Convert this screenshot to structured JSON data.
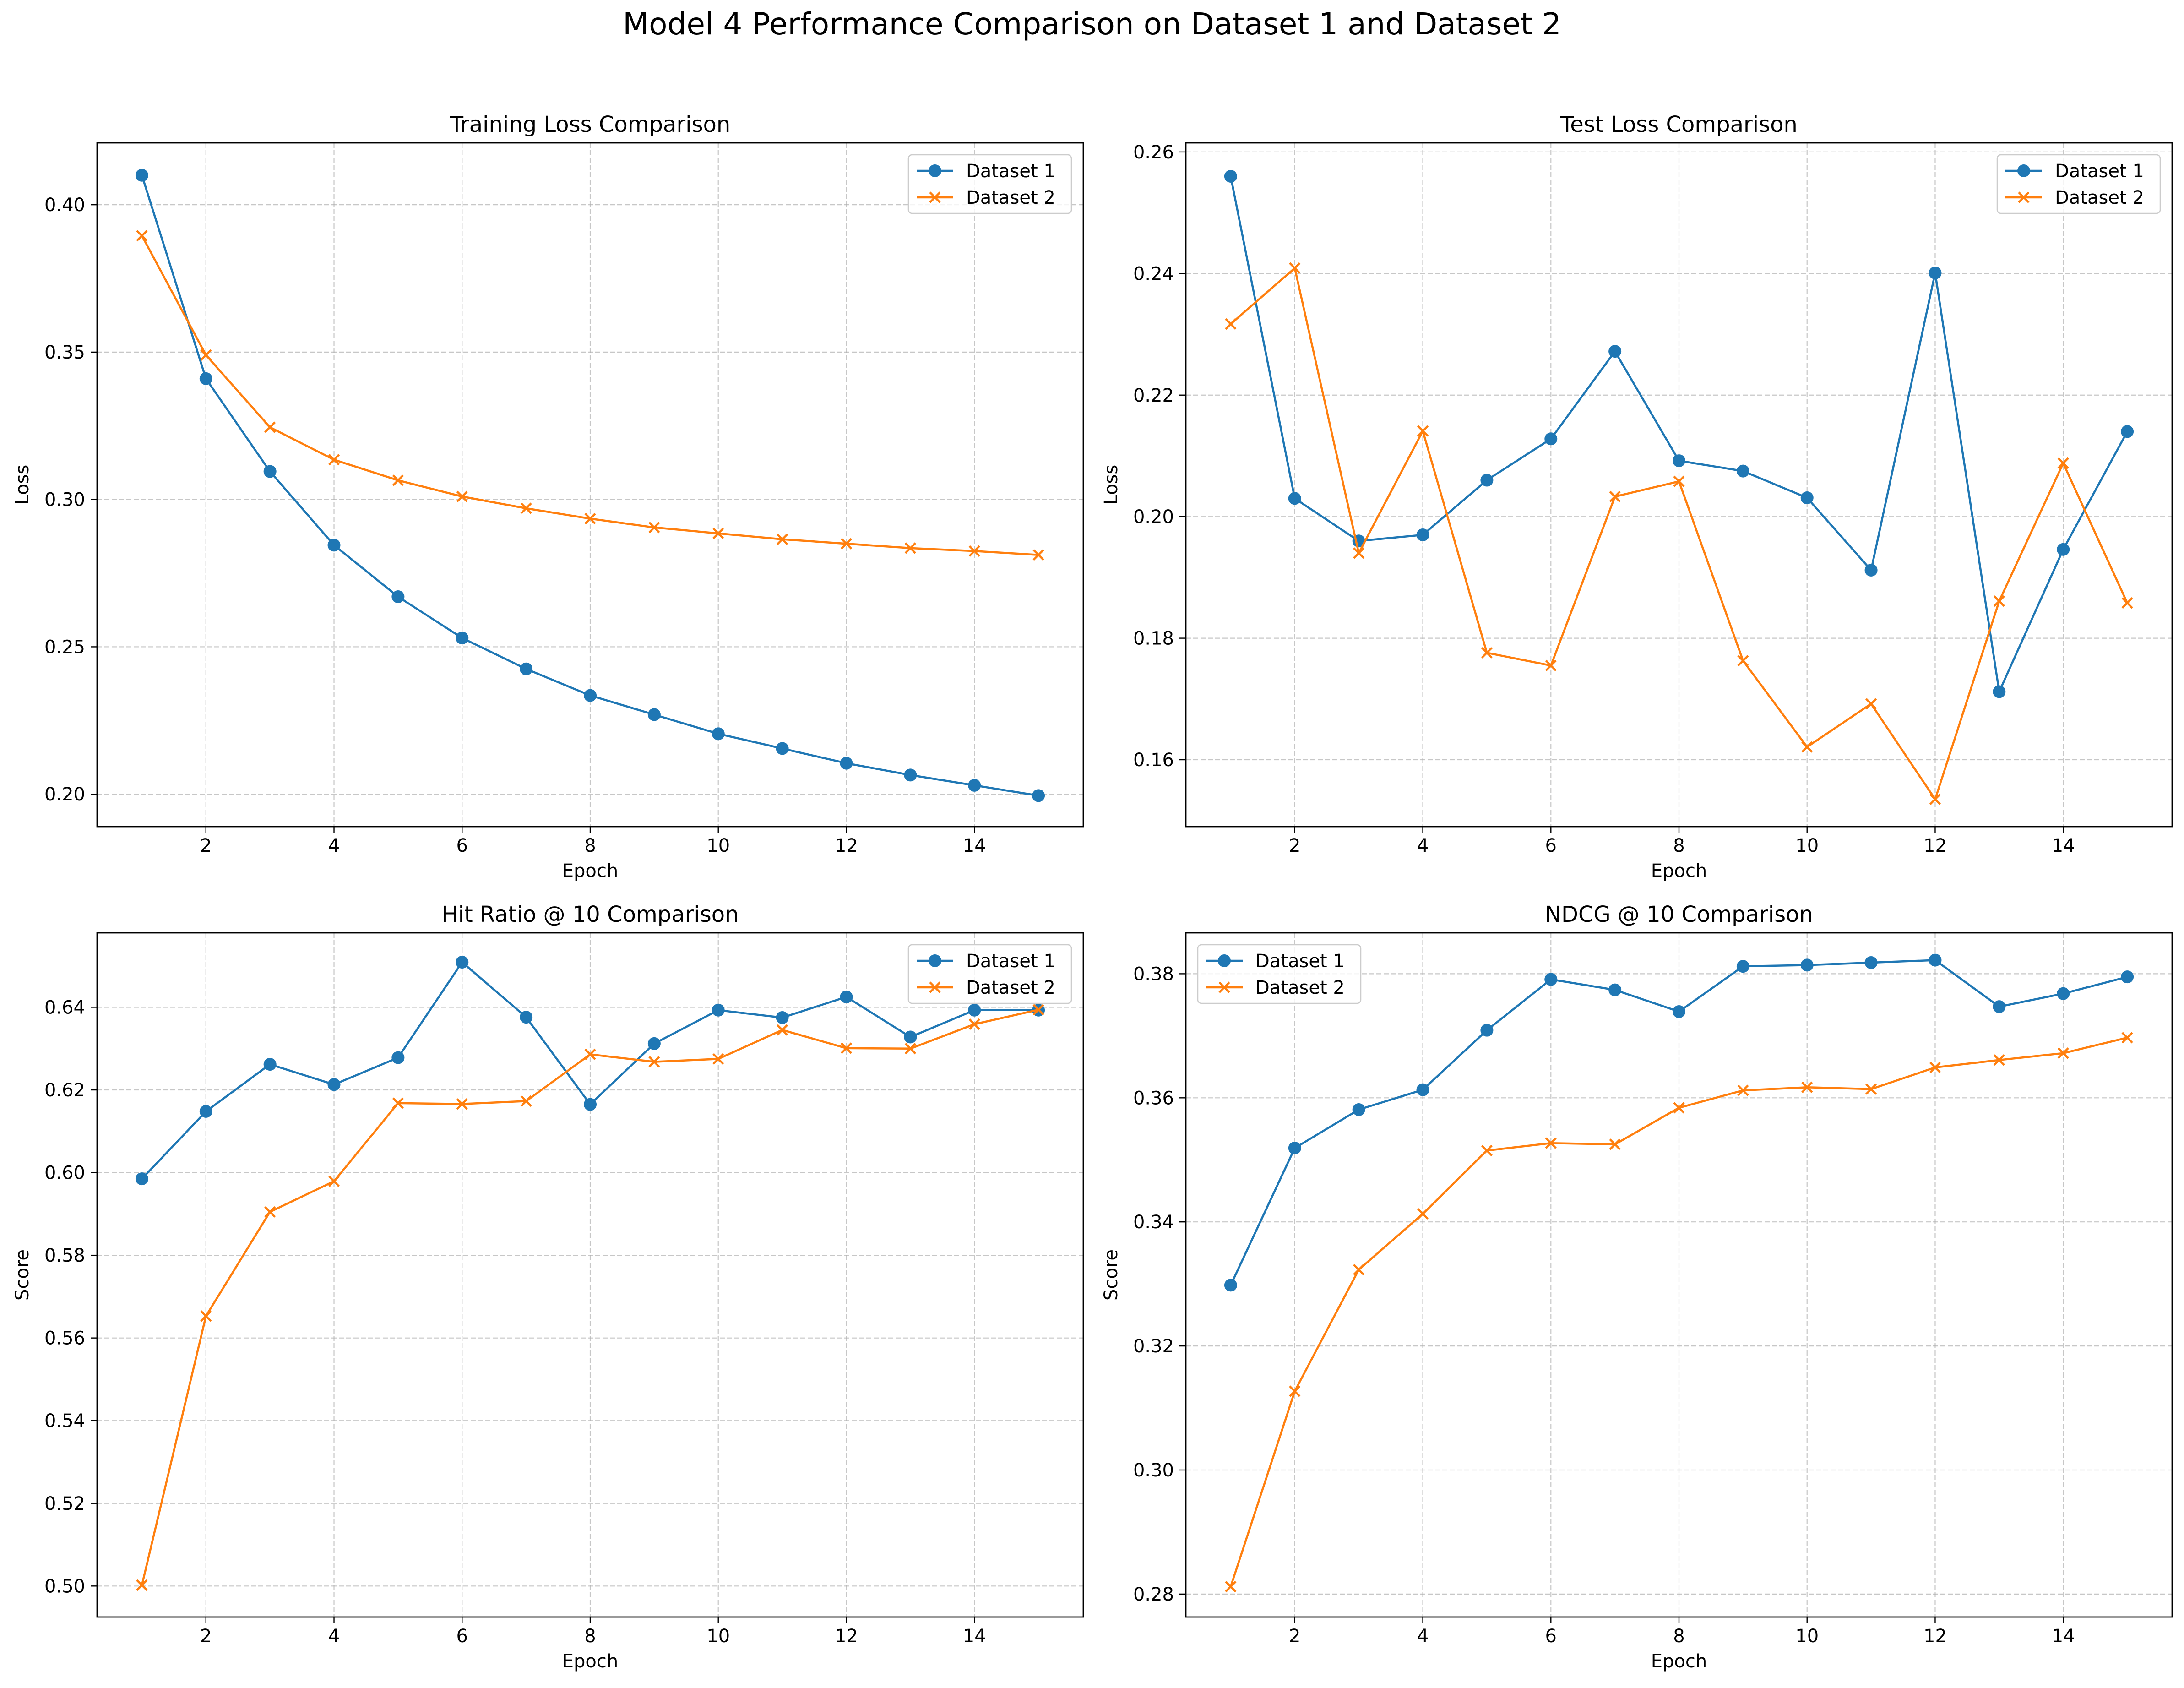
{
  "figure_title": "Model 4 Performance Comparison on Dataset 1 and Dataset 2",
  "colors": {
    "dataset1": "#1f77b4",
    "dataset2": "#ff7f0e",
    "grid": "#b0b0b0"
  },
  "chart_data": [
    {
      "type": "line",
      "title": "Training Loss Comparison",
      "xlabel": "Epoch",
      "ylabel": "Loss",
      "x": [
        1,
        2,
        3,
        4,
        5,
        6,
        7,
        8,
        9,
        10,
        11,
        12,
        13,
        14,
        15
      ],
      "xlim": [
        0.3,
        15.7
      ],
      "ylim": [
        0.189,
        0.421
      ],
      "xticks": [
        2,
        4,
        6,
        8,
        10,
        12,
        14
      ],
      "yticks": [
        0.2,
        0.25,
        0.3,
        0.35,
        0.4
      ],
      "ytick_labels": [
        "0.20",
        "0.25",
        "0.30",
        "0.35",
        "0.40"
      ],
      "grid": true,
      "legend": "top-right",
      "series": [
        {
          "name": "Dataset 1",
          "marker": "circle",
          "values": [
            0.41,
            0.341,
            0.3095,
            0.2845,
            0.267,
            0.253,
            0.2425,
            0.2335,
            0.227,
            0.2205,
            0.2155,
            0.2105,
            0.2065,
            0.203,
            0.1995
          ]
        },
        {
          "name": "Dataset 2",
          "marker": "x",
          "values": [
            0.3895,
            0.349,
            0.3245,
            0.3135,
            0.3065,
            0.301,
            0.297,
            0.2935,
            0.2905,
            0.2885,
            0.2865,
            0.285,
            0.2835,
            0.2825,
            0.2812
          ]
        }
      ]
    },
    {
      "type": "line",
      "title": "Test Loss Comparison",
      "xlabel": "Epoch",
      "ylabel": "Loss",
      "x": [
        1,
        2,
        3,
        4,
        5,
        6,
        7,
        8,
        9,
        10,
        11,
        12,
        13,
        14,
        15
      ],
      "xlim": [
        0.3,
        15.7
      ],
      "ylim": [
        0.149,
        0.2615
      ],
      "xticks": [
        2,
        4,
        6,
        8,
        10,
        12,
        14
      ],
      "yticks": [
        0.16,
        0.18,
        0.2,
        0.22,
        0.24,
        0.26
      ],
      "ytick_labels": [
        "0.16",
        "0.18",
        "0.20",
        "0.22",
        "0.24",
        "0.26"
      ],
      "grid": true,
      "legend": "top-right",
      "series": [
        {
          "name": "Dataset 1",
          "marker": "circle",
          "values": [
            0.256,
            0.203,
            0.196,
            0.197,
            0.206,
            0.2128,
            0.2272,
            0.2092,
            0.2075,
            0.2031,
            0.1912,
            0.2401,
            0.1712,
            0.1946,
            0.214
          ]
        },
        {
          "name": "Dataset 2",
          "marker": "x",
          "values": [
            0.2317,
            0.2409,
            0.194,
            0.2141,
            0.1776,
            0.1755,
            0.2033,
            0.2058,
            0.1763,
            0.1621,
            0.1692,
            0.1535,
            0.1861,
            0.2088,
            0.1858
          ]
        }
      ]
    },
    {
      "type": "line",
      "title": "Hit Ratio @ 10 Comparison",
      "xlabel": "Epoch",
      "ylabel": "Score",
      "x": [
        1,
        2,
        3,
        4,
        5,
        6,
        7,
        8,
        9,
        10,
        11,
        12,
        13,
        14,
        15
      ],
      "xlim": [
        0.3,
        15.7
      ],
      "ylim": [
        0.4925,
        0.658
      ],
      "xticks": [
        2,
        4,
        6,
        8,
        10,
        12,
        14
      ],
      "yticks": [
        0.5,
        0.52,
        0.54,
        0.56,
        0.58,
        0.6,
        0.62,
        0.64
      ],
      "ytick_labels": [
        "0.50",
        "0.52",
        "0.54",
        "0.56",
        "0.58",
        "0.60",
        "0.62",
        "0.64"
      ],
      "grid": true,
      "legend": "top-right",
      "series": [
        {
          "name": "Dataset 1",
          "marker": "circle",
          "values": [
            0.5985,
            0.6148,
            0.6262,
            0.6213,
            0.6278,
            0.6509,
            0.6376,
            0.6165,
            0.6312,
            0.6393,
            0.6375,
            0.6425,
            0.6328,
            0.6393,
            0.6393
          ]
        },
        {
          "name": "Dataset 2",
          "marker": "x",
          "values": [
            0.5002,
            0.5653,
            0.5905,
            0.5979,
            0.6168,
            0.6166,
            0.6173,
            0.6286,
            0.6268,
            0.6275,
            0.6345,
            0.6301,
            0.63,
            0.6359,
            0.6394
          ]
        }
      ]
    },
    {
      "type": "line",
      "title": "NDCG @ 10 Comparison",
      "xlabel": "Epoch",
      "ylabel": "Score",
      "x": [
        1,
        2,
        3,
        4,
        5,
        6,
        7,
        8,
        9,
        10,
        11,
        12,
        13,
        14,
        15
      ],
      "xlim": [
        0.3,
        15.7
      ],
      "ylim": [
        0.2763,
        0.3866
      ],
      "xticks": [
        2,
        4,
        6,
        8,
        10,
        12,
        14
      ],
      "yticks": [
        0.28,
        0.3,
        0.32,
        0.34,
        0.36,
        0.38
      ],
      "ytick_labels": [
        "0.28",
        "0.30",
        "0.32",
        "0.34",
        "0.36",
        "0.38"
      ],
      "grid": true,
      "legend": "top-left",
      "series": [
        {
          "name": "Dataset 1",
          "marker": "circle",
          "values": [
            0.3298,
            0.3519,
            0.3581,
            0.3613,
            0.3709,
            0.3791,
            0.3774,
            0.3739,
            0.3812,
            0.3814,
            0.3818,
            0.3822,
            0.3747,
            0.3768,
            0.3795
          ]
        },
        {
          "name": "Dataset 2",
          "marker": "x",
          "values": [
            0.2812,
            0.3127,
            0.3323,
            0.3413,
            0.3515,
            0.3527,
            0.3525,
            0.3584,
            0.3612,
            0.3617,
            0.3614,
            0.3649,
            0.3661,
            0.3672,
            0.3697
          ]
        }
      ]
    }
  ]
}
